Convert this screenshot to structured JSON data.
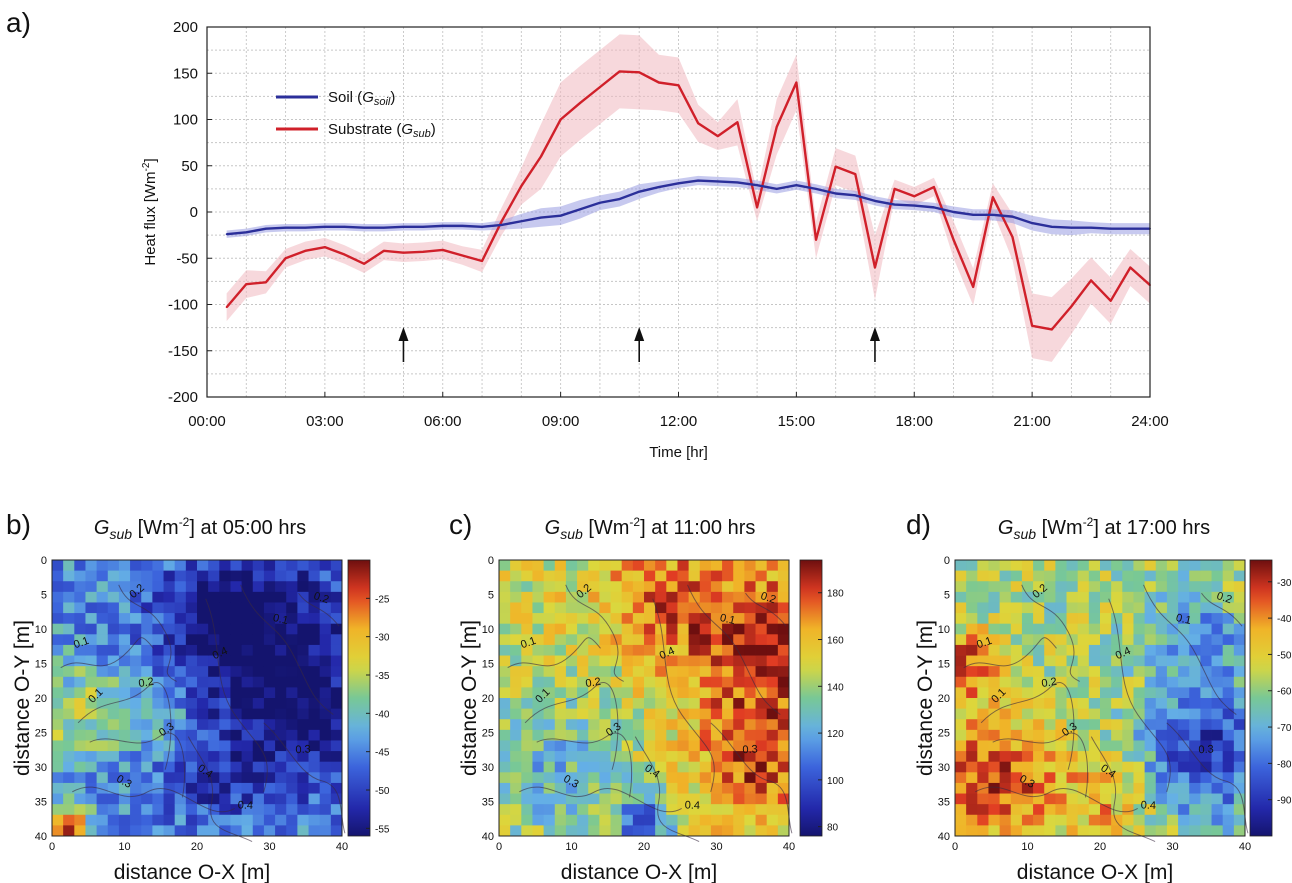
{
  "panel_a": {
    "letter": "a)",
    "legend": {
      "soil": {
        "text": "Soil (",
        "sym": "G",
        "sub": "soil",
        "close": ")"
      },
      "substrate": {
        "text": "Substrate (",
        "sym": "G",
        "sub": "sub",
        "close": ")"
      }
    }
  },
  "panels": [
    {
      "letter": "b)",
      "title_sym": "G",
      "title_sub": "sub",
      "title_mid": " [Wm",
      "title_sup": "-2",
      "title_end": "] at 05:00 hrs"
    },
    {
      "letter": "c)",
      "title_sym": "G",
      "title_sub": "sub",
      "title_mid": " [Wm",
      "title_sup": "-2",
      "title_end": "] at 11:00 hrs"
    },
    {
      "letter": "d)",
      "title_sym": "G",
      "title_sub": "sub",
      "title_mid": " [Wm",
      "title_sup": "-2",
      "title_end": "] at 17:00 hrs"
    }
  ],
  "heatmap_axes": {
    "xlabel": "distance O-X [m]",
    "ylabel": "distance O-Y [m]"
  },
  "colors": {
    "soil": "#2b2f9a",
    "substrate": "#d0202a",
    "soil_band": "#8f93e0",
    "sub_band": "#f1b8bf"
  },
  "chart_data": [
    {
      "type": "line",
      "xlabel": "Time [hr]",
      "ylabel": "Heat flux [Wm-2]",
      "ylabel_text": "Heat flux [Wm",
      "ylabel_sup": "-2",
      "ylabel_close": "]",
      "xlim": [
        0,
        24
      ],
      "ylim": [
        -200,
        200
      ],
      "xticks": [
        "00:00",
        "03:00",
        "06:00",
        "09:00",
        "12:00",
        "15:00",
        "18:00",
        "21:00",
        "24:00"
      ],
      "yticks": [
        "-200",
        "-150",
        "-100",
        "-50",
        "0",
        "50",
        "100",
        "150",
        "200"
      ],
      "grid": true,
      "legend_position": "top-left",
      "arrows_at_hours": [
        5,
        11,
        17
      ],
      "x_hours": [
        0.5,
        1,
        1.5,
        2,
        2.5,
        3,
        3.5,
        4,
        4.5,
        5,
        5.5,
        6,
        6.5,
        7,
        7.5,
        8,
        8.5,
        9,
        9.5,
        10,
        10.5,
        11,
        11.5,
        12,
        12.5,
        13,
        13.5,
        14,
        14.5,
        15,
        15.5,
        16,
        16.5,
        17,
        17.5,
        18,
        18.5,
        19,
        19.5,
        20,
        20.5,
        21,
        21.5,
        22,
        22.5,
        23,
        23.5,
        24
      ],
      "series": [
        {
          "name": "Soil (Gsoil)",
          "values": [
            -24,
            -22,
            -18,
            -17,
            -17,
            -16,
            -16,
            -17,
            -17,
            -16,
            -16,
            -15,
            -15,
            -16,
            -14,
            -10,
            -6,
            -4,
            3,
            10,
            14,
            22,
            27,
            31,
            34,
            33,
            32,
            29,
            25,
            29,
            25,
            20,
            18,
            12,
            8,
            7,
            5,
            0,
            -3,
            -3,
            -5,
            -12,
            -16,
            -17,
            -17,
            -18,
            -18,
            -18
          ],
          "band": [
            4,
            4,
            4,
            4,
            4,
            4,
            4,
            4,
            4,
            4,
            4,
            4,
            4,
            4,
            5,
            8,
            10,
            10,
            10,
            8,
            8,
            8,
            6,
            5,
            5,
            5,
            5,
            5,
            5,
            5,
            5,
            5,
            5,
            5,
            5,
            5,
            5,
            6,
            6,
            6,
            7,
            8,
            8,
            8,
            6,
            6,
            6,
            6
          ]
        },
        {
          "name": "Substrate (Gsub)",
          "values": [
            -103,
            -78,
            -76,
            -50,
            -42,
            -38,
            -46,
            -56,
            -42,
            -44,
            -43,
            -41,
            -47,
            -53,
            -10,
            28,
            60,
            100,
            118,
            135,
            152,
            151,
            140,
            137,
            96,
            82,
            97,
            5,
            92,
            140,
            -30,
            49,
            41,
            -60,
            25,
            17,
            27,
            -30,
            -81,
            16,
            -27,
            -123,
            -127,
            -102,
            -74,
            -96,
            -60,
            -79
          ],
          "band": [
            15,
            15,
            12,
            10,
            10,
            10,
            10,
            10,
            10,
            10,
            10,
            10,
            10,
            12,
            15,
            20,
            35,
            40,
            40,
            40,
            40,
            40,
            30,
            30,
            20,
            15,
            25,
            15,
            30,
            30,
            20,
            20,
            20,
            35,
            10,
            10,
            10,
            20,
            20,
            15,
            25,
            35,
            35,
            30,
            25,
            25,
            20,
            20
          ]
        }
      ]
    },
    {
      "type": "heatmap",
      "title": "Gsub [Wm-2] at 05:00 hrs",
      "xlabel": "distance O-X [m]",
      "ylabel": "distance O-Y [m]",
      "xlim": [
        0,
        40
      ],
      "ylim": [
        0,
        40
      ],
      "xticks": [
        "0",
        "10",
        "20",
        "30",
        "40"
      ],
      "yticks": [
        "0",
        "5",
        "10",
        "15",
        "20",
        "25",
        "30",
        "35",
        "40"
      ],
      "colorbar_range": [
        -56,
        -20
      ],
      "colorbar_ticks": [
        "-25",
        "-30",
        "-35",
        "-40",
        "-45",
        "-50",
        "-55"
      ],
      "contour_labels": [
        "0.1",
        "0.2",
        "0.3",
        "0.4"
      ],
      "regions": [
        {
          "x": 30,
          "y": 12,
          "r": 14,
          "value": -55
        },
        {
          "x": 24,
          "y": 8,
          "r": 8,
          "value": -52
        },
        {
          "x": 36,
          "y": 25,
          "r": 10,
          "value": -52
        },
        {
          "x": 22,
          "y": 32,
          "r": 7,
          "value": -50
        },
        {
          "x": 3,
          "y": 22,
          "r": 7,
          "value": -36
        },
        {
          "x": 14,
          "y": 22,
          "r": 5,
          "value": -37
        },
        {
          "x": 2,
          "y": 39,
          "r": 3,
          "value": -22
        }
      ],
      "baseline": -44
    },
    {
      "type": "heatmap",
      "title": "Gsub [Wm-2] at 11:00 hrs",
      "xlabel": "distance O-X [m]",
      "ylabel": "distance O-Y [m]",
      "xlim": [
        0,
        40
      ],
      "ylim": [
        0,
        40
      ],
      "xticks": [
        "0",
        "10",
        "20",
        "30",
        "40"
      ],
      "yticks": [
        "0",
        "5",
        "10",
        "15",
        "20",
        "25",
        "30",
        "35",
        "40"
      ],
      "colorbar_range": [
        76,
        194
      ],
      "colorbar_ticks": [
        "180",
        "160",
        "140",
        "120",
        "100",
        "80"
      ],
      "contour_labels": [
        "0.1",
        "0.2",
        "0.3",
        "0.4"
      ],
      "regions": [
        {
          "x": 36,
          "y": 12,
          "r": 12,
          "value": 185
        },
        {
          "x": 36,
          "y": 30,
          "r": 9,
          "value": 178
        },
        {
          "x": 22,
          "y": 5,
          "r": 8,
          "value": 168
        },
        {
          "x": 10,
          "y": 8,
          "r": 10,
          "value": 150
        },
        {
          "x": 6,
          "y": 30,
          "r": 10,
          "value": 125
        },
        {
          "x": 20,
          "y": 38,
          "r": 4,
          "value": 100
        }
      ],
      "baseline": 145
    },
    {
      "type": "heatmap",
      "title": "Gsub [Wm-2] at 17:00 hrs",
      "xlabel": "distance O-X [m]",
      "ylabel": "distance O-Y [m]",
      "xlim": [
        0,
        40
      ],
      "ylim": [
        0,
        40
      ],
      "xticks": [
        "0",
        "10",
        "20",
        "30",
        "40"
      ],
      "yticks": [
        "0",
        "5",
        "10",
        "15",
        "20",
        "25",
        "30",
        "35",
        "40"
      ],
      "colorbar_range": [
        -100,
        -24
      ],
      "colorbar_ticks": [
        "-30",
        "-40",
        "-50",
        "-60",
        "-70",
        "-80",
        "-90"
      ],
      "contour_labels": [
        "0.1",
        "0.2",
        "0.3",
        "0.4"
      ],
      "regions": [
        {
          "x": 6,
          "y": 32,
          "r": 10,
          "value": -32
        },
        {
          "x": 2,
          "y": 15,
          "r": 5,
          "value": -36
        },
        {
          "x": 35,
          "y": 28,
          "r": 9,
          "value": -90
        },
        {
          "x": 34,
          "y": 12,
          "r": 7,
          "value": -75
        },
        {
          "x": 22,
          "y": 35,
          "r": 6,
          "value": -45
        }
      ],
      "baseline": -58
    }
  ]
}
